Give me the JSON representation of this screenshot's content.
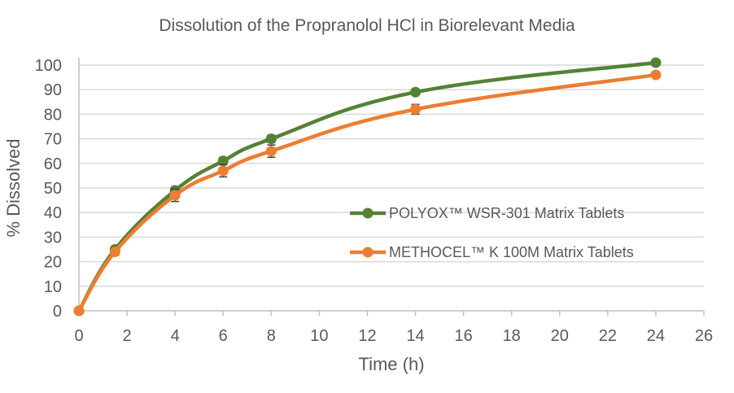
{
  "chart_data": {
    "type": "line",
    "title": "Dissolution of the Propranolol HCl in Biorelevant Media",
    "xlabel": "Time (h)",
    "ylabel": "% Dissolved",
    "xlim": [
      0,
      26
    ],
    "ylim": [
      0,
      100
    ],
    "xticks": [
      0,
      2,
      4,
      6,
      8,
      10,
      12,
      14,
      16,
      18,
      20,
      22,
      24,
      26
    ],
    "yticks": [
      0,
      10,
      20,
      30,
      40,
      50,
      60,
      70,
      80,
      90,
      100
    ],
    "grid": "horizontal",
    "smooth": true,
    "legend_position": "center-right",
    "series": [
      {
        "name": "POLYOX™ WSR-301 Matrix Tablets",
        "color": "#548235",
        "x": [
          0,
          1.5,
          4,
          6,
          8,
          14,
          24
        ],
        "y": [
          0,
          25,
          49,
          61,
          70,
          89,
          101
        ],
        "error": [
          0,
          1,
          1.5,
          1.5,
          1.5,
          1,
          0.5
        ]
      },
      {
        "name": "METHOCEL™ K 100M Matrix Tablets",
        "color": "#ED7D31",
        "x": [
          0,
          1.5,
          4,
          6,
          8,
          14,
          24
        ],
        "y": [
          0,
          24,
          47,
          57,
          65,
          82,
          96
        ],
        "error": [
          0,
          1.5,
          2.5,
          2.5,
          2.5,
          2,
          0.5
        ]
      }
    ]
  }
}
